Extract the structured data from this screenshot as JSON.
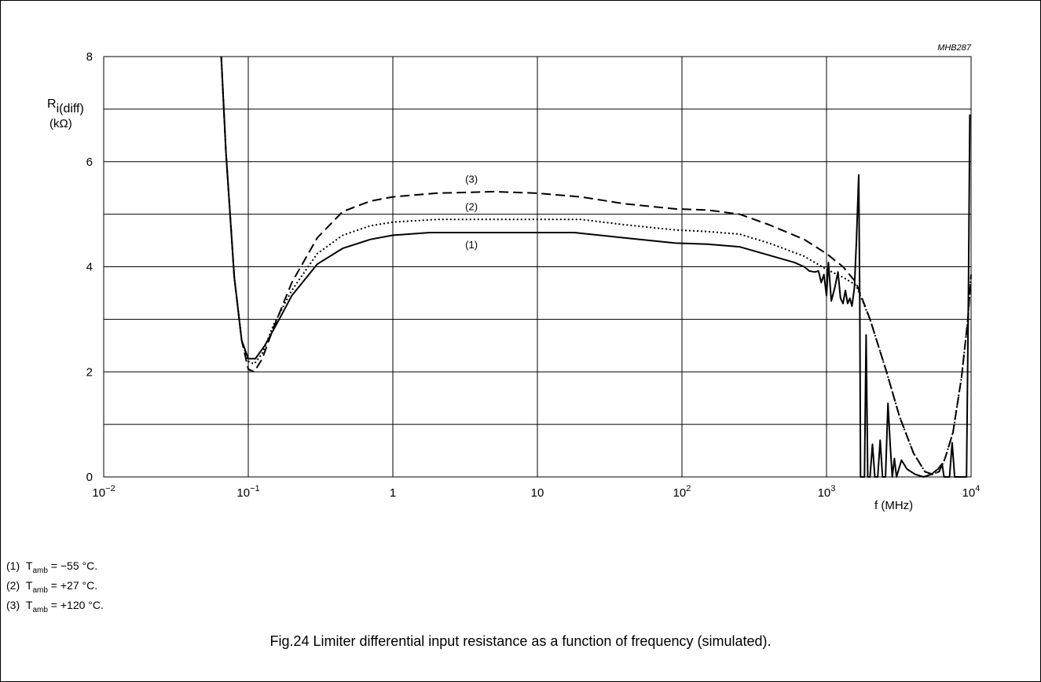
{
  "chart_data": {
    "type": "line",
    "code": "MHB287",
    "ylabel": {
      "symbol": "R",
      "subscript": "i(diff)",
      "unit": "(kΩ)"
    },
    "xlabel": "f (MHz)",
    "x_scale": "log",
    "xlim": [
      0.01,
      10000
    ],
    "ylim": [
      0,
      8
    ],
    "y_ticks": [
      "0",
      "2",
      "4",
      "6",
      "8"
    ],
    "x_ticks": [
      {
        "value": 0.01,
        "base": "10",
        "exp": "−2"
      },
      {
        "value": 0.1,
        "base": "10",
        "exp": "−1"
      },
      {
        "value": 1,
        "base": "1",
        "exp": ""
      },
      {
        "value": 10,
        "base": "10",
        "exp": ""
      },
      {
        "value": 100,
        "base": "10",
        "exp": "2"
      },
      {
        "value": 1000,
        "base": "10",
        "exp": "3"
      },
      {
        "value": 10000,
        "base": "10",
        "exp": "4"
      }
    ],
    "grid": true,
    "series": [
      {
        "name": "(1)",
        "style": "solid",
        "points": [
          [
            0.065,
            8.0
          ],
          [
            0.07,
            6.2
          ],
          [
            0.08,
            3.8
          ],
          [
            0.09,
            2.6
          ],
          [
            0.1,
            2.25
          ],
          [
            0.112,
            2.25
          ],
          [
            0.13,
            2.5
          ],
          [
            0.16,
            2.95
          ],
          [
            0.2,
            3.45
          ],
          [
            0.3,
            4.05
          ],
          [
            0.45,
            4.35
          ],
          [
            0.7,
            4.52
          ],
          [
            1,
            4.6
          ],
          [
            1.8,
            4.65
          ],
          [
            4,
            4.65
          ],
          [
            10,
            4.65
          ],
          [
            18,
            4.65
          ],
          [
            40,
            4.55
          ],
          [
            90,
            4.45
          ],
          [
            150,
            4.43
          ],
          [
            250,
            4.38
          ],
          [
            400,
            4.22
          ],
          [
            600,
            4.08
          ],
          [
            700,
            4.0
          ],
          [
            760,
            3.92
          ],
          [
            830,
            3.9
          ],
          [
            880,
            3.92
          ],
          [
            920,
            3.7
          ],
          [
            960,
            3.85
          ],
          [
            1000,
            3.45
          ],
          [
            1030,
            4.08
          ],
          [
            1080,
            3.35
          ],
          [
            1140,
            3.6
          ],
          [
            1200,
            3.9
          ],
          [
            1250,
            3.4
          ],
          [
            1300,
            3.3
          ],
          [
            1350,
            3.55
          ],
          [
            1400,
            3.3
          ],
          [
            1450,
            3.4
          ],
          [
            1500,
            3.25
          ],
          [
            1560,
            3.6
          ],
          [
            1610,
            4.5
          ],
          [
            1670,
            5.75
          ],
          [
            1700,
            3.2
          ],
          [
            1720,
            0.0
          ],
          [
            1830,
            0.0
          ],
          [
            1880,
            2.7
          ],
          [
            1930,
            0.0
          ],
          [
            2000,
            0.0
          ],
          [
            2080,
            0.62
          ],
          [
            2160,
            0.0
          ],
          [
            2260,
            0.0
          ],
          [
            2350,
            0.7
          ],
          [
            2440,
            0.0
          ],
          [
            2560,
            0.0
          ],
          [
            2660,
            1.4
          ],
          [
            2760,
            0.6
          ],
          [
            2850,
            0.0
          ],
          [
            2950,
            0.35
          ],
          [
            3050,
            0.0
          ],
          [
            3300,
            0.32
          ],
          [
            3600,
            0.15
          ],
          [
            4100,
            0.05
          ],
          [
            4700,
            0.0
          ],
          [
            5300,
            0.05
          ],
          [
            5900,
            0.15
          ],
          [
            6300,
            0.25
          ],
          [
            6500,
            0.0
          ],
          [
            7100,
            0.0
          ],
          [
            7400,
            0.65
          ],
          [
            7700,
            0.0
          ],
          [
            9300,
            0.0
          ],
          [
            9600,
            3.6
          ],
          [
            9800,
            6.9
          ]
        ]
      },
      {
        "name": "(2)",
        "style": "dotted",
        "points": [
          [
            0.065,
            8.0
          ],
          [
            0.07,
            6.2
          ],
          [
            0.08,
            3.8
          ],
          [
            0.09,
            2.6
          ],
          [
            0.1,
            2.2
          ],
          [
            0.11,
            2.15
          ],
          [
            0.125,
            2.35
          ],
          [
            0.15,
            2.9
          ],
          [
            0.2,
            3.55
          ],
          [
            0.3,
            4.25
          ],
          [
            0.45,
            4.6
          ],
          [
            0.7,
            4.78
          ],
          [
            1,
            4.85
          ],
          [
            2,
            4.9
          ],
          [
            5,
            4.9
          ],
          [
            10,
            4.9
          ],
          [
            20,
            4.9
          ],
          [
            40,
            4.8
          ],
          [
            90,
            4.7
          ],
          [
            150,
            4.67
          ],
          [
            250,
            4.62
          ],
          [
            400,
            4.45
          ],
          [
            700,
            4.2
          ],
          [
            1000,
            3.95
          ],
          [
            1300,
            3.8
          ],
          [
            1600,
            3.65
          ],
          [
            2000,
            3.0
          ],
          [
            2600,
            2.0
          ],
          [
            3200,
            1.15
          ],
          [
            4000,
            0.45
          ],
          [
            4800,
            0.1
          ],
          [
            5400,
            0.05
          ],
          [
            6000,
            0.1
          ],
          [
            6600,
            0.35
          ],
          [
            7500,
            0.85
          ],
          [
            8600,
            1.9
          ],
          [
            9500,
            3.0
          ],
          [
            10000,
            3.85
          ]
        ]
      },
      {
        "name": "(3)",
        "style": "dashed",
        "points": [
          [
            0.065,
            8.0
          ],
          [
            0.07,
            6.2
          ],
          [
            0.08,
            3.8
          ],
          [
            0.09,
            2.6
          ],
          [
            0.1,
            2.05
          ],
          [
            0.11,
            2.0
          ],
          [
            0.125,
            2.25
          ],
          [
            0.15,
            2.85
          ],
          [
            0.2,
            3.7
          ],
          [
            0.3,
            4.55
          ],
          [
            0.45,
            5.05
          ],
          [
            0.7,
            5.25
          ],
          [
            1,
            5.33
          ],
          [
            2,
            5.4
          ],
          [
            5,
            5.43
          ],
          [
            10,
            5.4
          ],
          [
            20,
            5.33
          ],
          [
            40,
            5.2
          ],
          [
            90,
            5.1
          ],
          [
            150,
            5.08
          ],
          [
            250,
            5.0
          ],
          [
            400,
            4.8
          ],
          [
            700,
            4.52
          ],
          [
            1000,
            4.25
          ],
          [
            1300,
            4.0
          ],
          [
            1600,
            3.7
          ],
          [
            2000,
            3.0
          ],
          [
            2600,
            2.0
          ],
          [
            3200,
            1.15
          ],
          [
            4000,
            0.45
          ],
          [
            4800,
            0.1
          ],
          [
            5400,
            0.05
          ],
          [
            6000,
            0.1
          ],
          [
            6600,
            0.35
          ],
          [
            7500,
            0.85
          ],
          [
            8600,
            1.9
          ],
          [
            9500,
            3.0
          ],
          [
            10000,
            3.85
          ]
        ]
      }
    ],
    "curve_labels": [
      {
        "text": "(3)",
        "x": 3.5,
        "y": 5.6
      },
      {
        "text": "(2)",
        "x": 3.5,
        "y": 5.08
      },
      {
        "text": "(1)",
        "x": 3.5,
        "y": 4.35
      }
    ]
  },
  "notes": [
    {
      "num": "(1)",
      "sym": "T",
      "sub": "amb",
      "rest": " = −55 °C."
    },
    {
      "num": "(2)",
      "sym": "T",
      "sub": "amb",
      "rest": " = +27 °C."
    },
    {
      "num": "(3)",
      "sym": "T",
      "sub": "amb",
      "rest": " = +120 °C."
    }
  ],
  "caption": "Fig.24  Limiter differential input resistance as a function of frequency (simulated)."
}
